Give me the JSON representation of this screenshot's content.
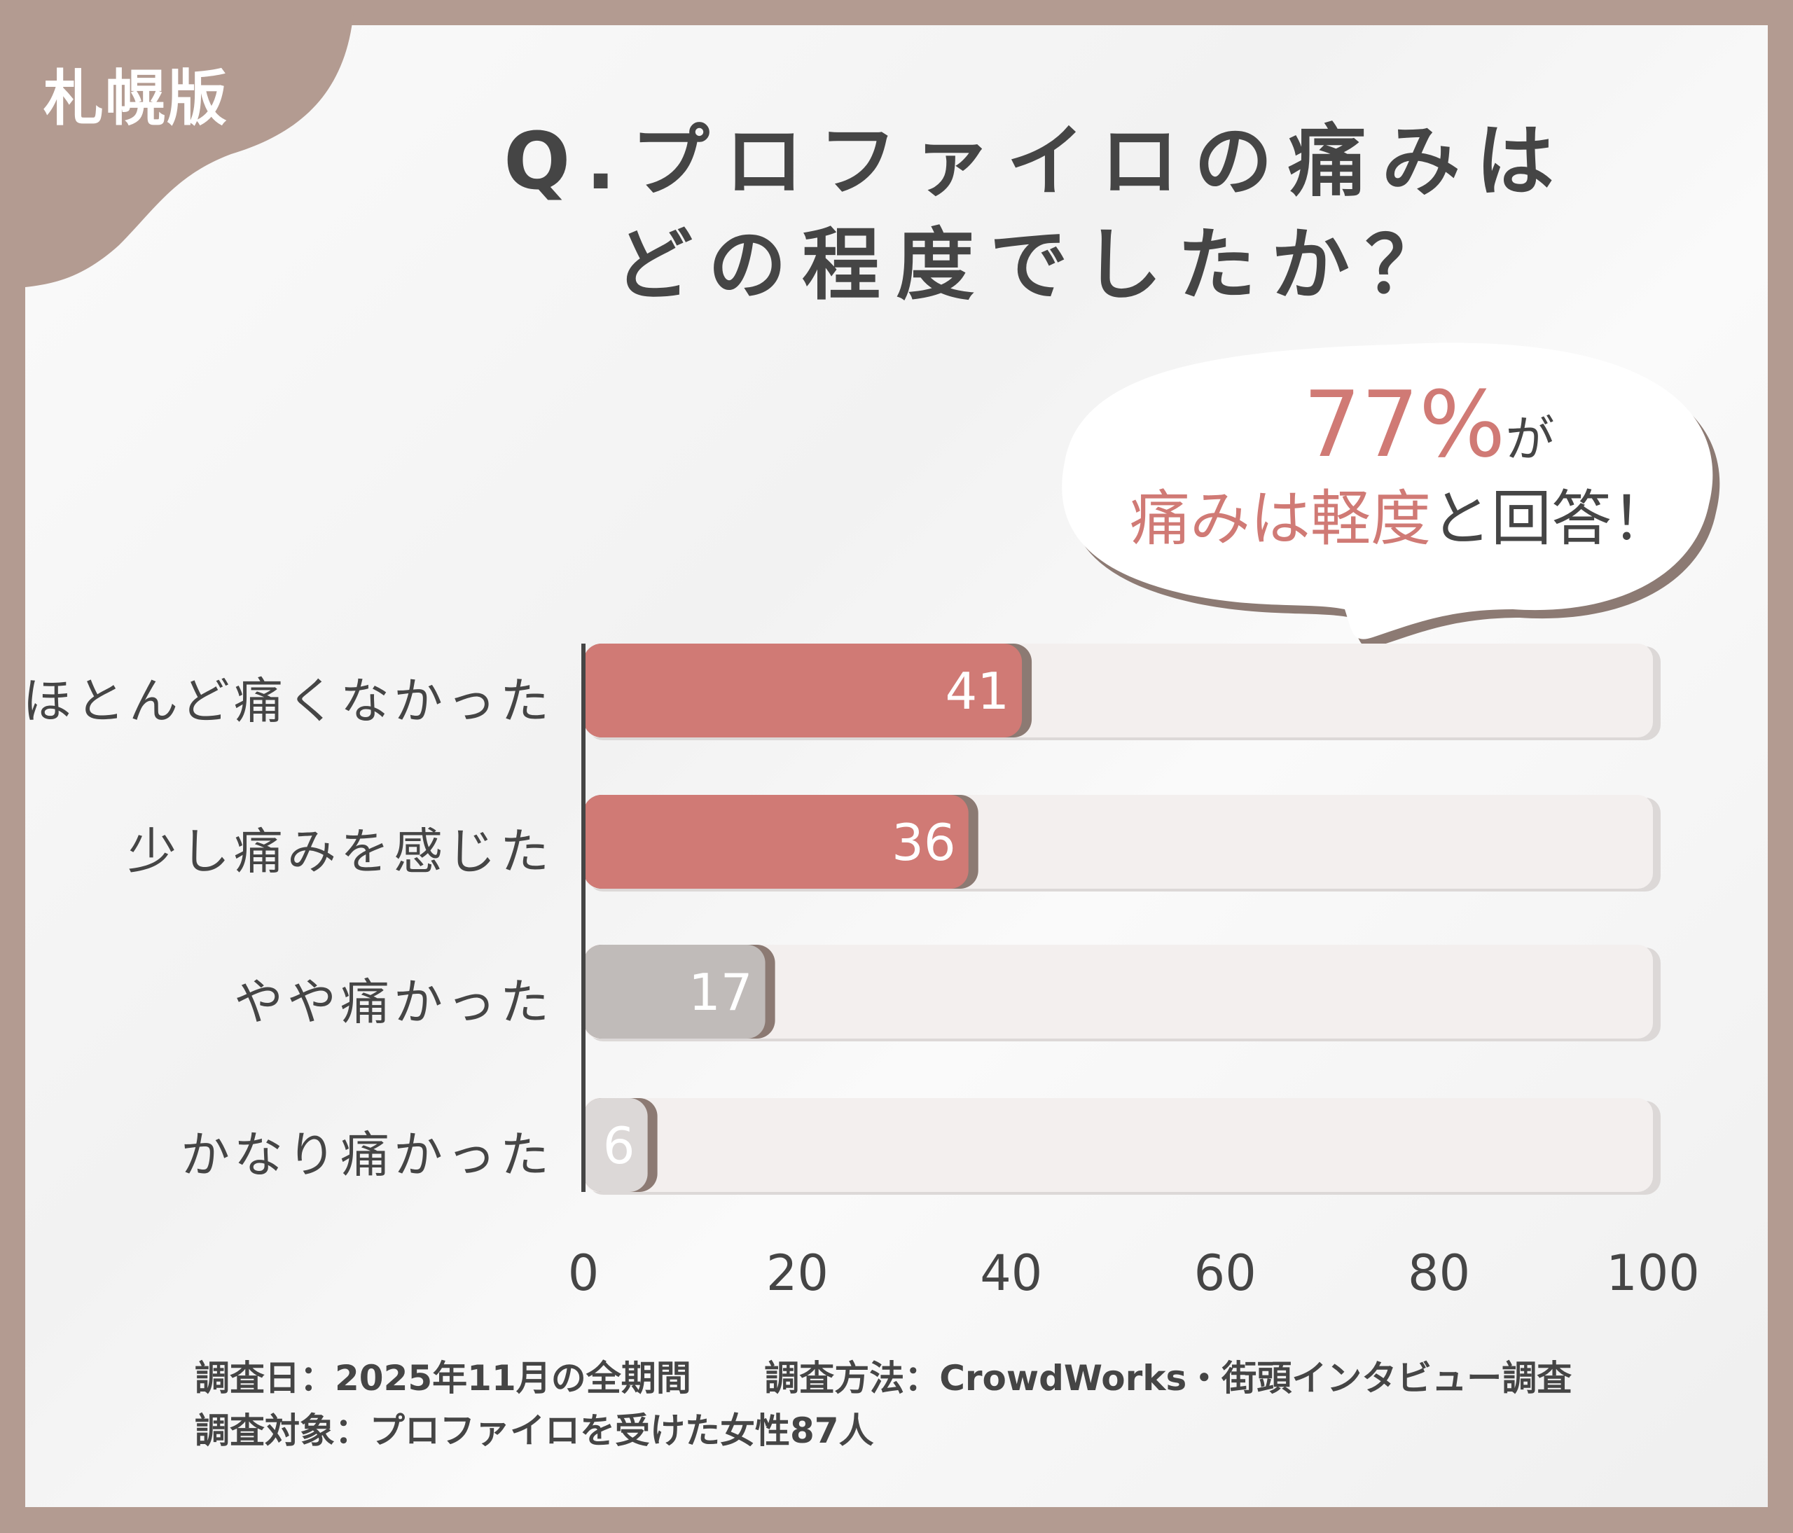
{
  "badge": "札幌版",
  "title": [
    "Q.プロファイロの痛みは",
    "どの程度でしたか？"
  ],
  "callout": {
    "percent": "77%",
    "suffix": "が",
    "highlight": "痛みは軽度",
    "rest": "と回答！"
  },
  "colors": {
    "frame": "#b39b91",
    "highlight": "#d07a75",
    "muted": "#c0bbb9",
    "track": "#f3efee",
    "text": "#454545"
  },
  "chart_data": {
    "type": "bar",
    "orientation": "horizontal",
    "categories": [
      "ほとんど痛くなかった",
      "少し痛みを感じた",
      "やや痛かった",
      "かなり痛かった"
    ],
    "values": [
      41,
      36,
      17,
      6
    ],
    "bar_colors": [
      "#d07a75",
      "#d07a75",
      "#c0bbb9",
      "#dcd8d7"
    ],
    "xlim": [
      0,
      100
    ],
    "xticks": [
      "0",
      "20",
      "40",
      "60",
      "80",
      "100"
    ],
    "grid": false
  },
  "footer": {
    "date": "調査日：2025年11月の全期間",
    "method": "調査方法：CrowdWorks・街頭インタビュー調査",
    "target": "調査対象：プロファイロを受けた女性87人"
  }
}
